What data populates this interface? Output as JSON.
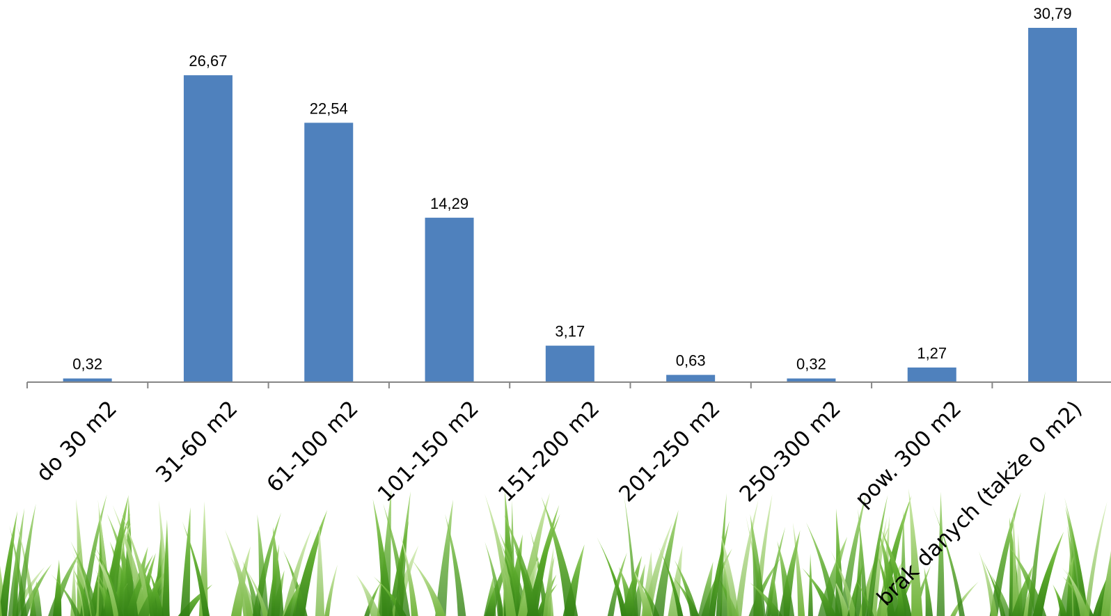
{
  "chart_data": {
    "type": "bar",
    "categories": [
      "do 30 m2",
      "31-60 m2",
      "61-100 m2",
      "101-150 m2",
      "151-200 m2",
      "201-250 m2",
      "250-300 m2",
      "pow. 300 m2",
      "brak danych (także 0 m2)"
    ],
    "values": [
      0.32,
      26.67,
      22.54,
      14.29,
      3.17,
      0.63,
      0.32,
      1.27,
      30.79
    ],
    "value_labels": [
      "0,32",
      "26,67",
      "22,54",
      "14,29",
      "3,17",
      "0,63",
      "0,32",
      "1,27",
      "30,79"
    ],
    "ylim": [
      0,
      32
    ],
    "grid": false,
    "legend": "none",
    "bar_color": "#4f81bd",
    "axis_color": "#868686",
    "background_decoration": "grass"
  }
}
